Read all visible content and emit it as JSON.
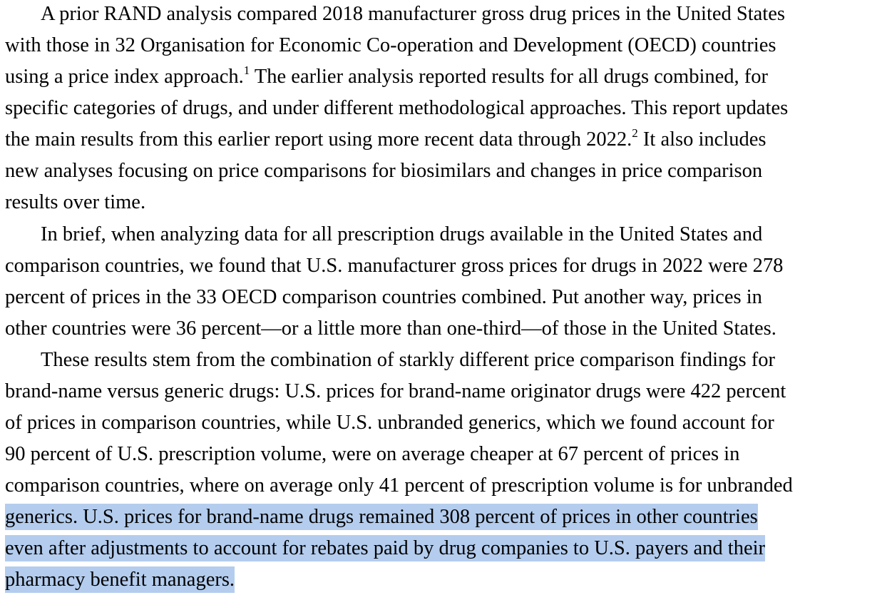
{
  "paragraphs": [
    {
      "lines": [
        "A prior RAND analysis compared 2018 manufacturer gross drug prices in the United States",
        "with those in 32 Organisation for Economic Co-operation and Development (OECD) countries",
        {
          "a": "using a price index approach.",
          "sup": "1",
          "b": " The earlier analysis reported results for all drugs combined, for"
        },
        "specific categories of drugs, and under different methodological approaches. This report updates",
        {
          "a": "the main results from this earlier report using more recent data through 2022.",
          "sup": "2",
          "b": " It also includes"
        },
        "new analyses focusing on price comparisons for biosimilars and changes in price comparison",
        "results over time."
      ]
    },
    {
      "lines": [
        "In brief, when analyzing data for all prescription drugs available in the United States and",
        "comparison countries, we found that U.S. manufacturer gross prices for drugs in 2022 were 278",
        "percent of prices in the 33 OECD comparison countries combined. Put another way, prices in",
        "other countries were 36 percent—or a little more than one-third—of those in the United States."
      ]
    },
    {
      "lines": [
        "These results stem from the combination of starkly different price comparison findings for",
        "brand-name versus generic drugs: U.S. prices for brand-name originator drugs were 422 percent",
        "of prices in comparison countries, while U.S. unbranded generics, which we found account for",
        "90 percent of U.S. prescription volume, were on average cheaper at 67 percent of prices in",
        "comparison countries, where on average only 41 percent of prescription volume is for unbranded",
        "generics. U.S. prices for brand-name drugs remained 308 percent of prices in other countries",
        "even after adjustments to account for rebates paid by drug companies to U.S. payers and their",
        "pharmacy benefit managers."
      ]
    }
  ],
  "selection_color": "#b4cdee"
}
